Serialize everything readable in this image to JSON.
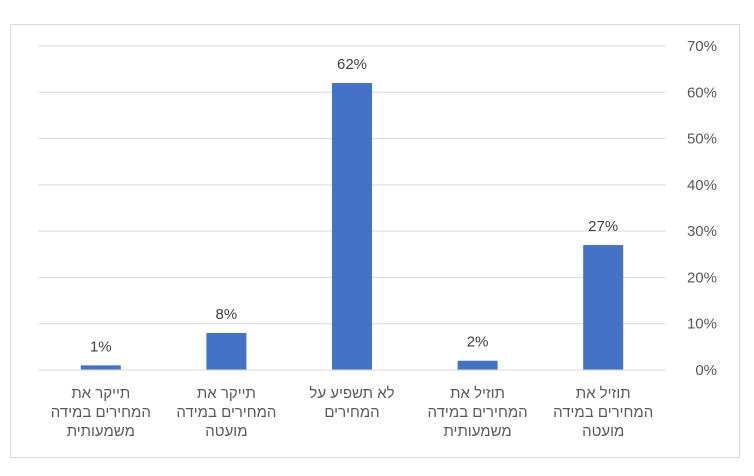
{
  "chart_data": {
    "type": "bar",
    "categories": [
      [
        "תוזיל את",
        "המחירים במידה",
        "מועטה"
      ],
      [
        "תוזיל את",
        "המחירים במידה",
        "משמעותית"
      ],
      [
        "לא תשפיע על",
        "המחירים"
      ],
      [
        "תייקר את",
        "המחירים במידה",
        "מועטה"
      ],
      [
        "תייקר את",
        "המחירים במידה",
        "משמעותית"
      ]
    ],
    "values": [
      27,
      2,
      62,
      8,
      1
    ],
    "data_labels": [
      "27%",
      "2%",
      "62%",
      "8%",
      "1%"
    ],
    "ylim": [
      0,
      70
    ],
    "yticks": [
      0,
      10,
      20,
      30,
      40,
      50,
      60,
      70
    ],
    "ytick_labels": [
      "0%",
      "10%",
      "20%",
      "30%",
      "40%",
      "50%",
      "60%",
      "70%"
    ],
    "yaxis_side": "right",
    "category_order": "right-to-left",
    "bar_color": "#4472c4",
    "grid": true,
    "grid_color": "#d9d9d9",
    "title": "",
    "xlabel": "",
    "ylabel": ""
  }
}
